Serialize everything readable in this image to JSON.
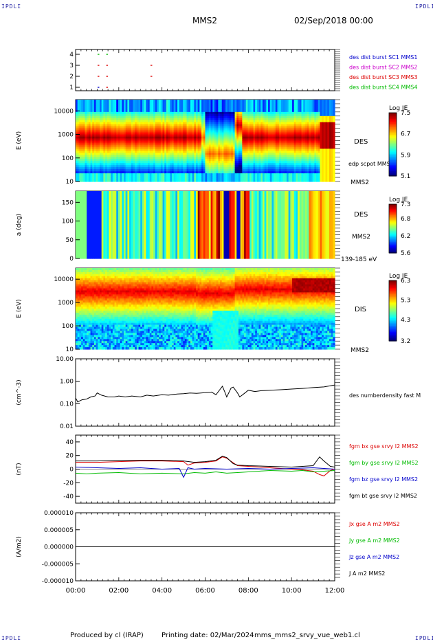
{
  "corner_labels": {
    "top_left": "IPDLI",
    "top_right": "IPDLI",
    "bottom_left": "IPDLI",
    "bottom_right": "IPDLI"
  },
  "header": {
    "spacecraft": "MMS2",
    "datetime": "02/Sep/2018 00:00"
  },
  "footer": {
    "producer": "Produced by cl (IRAP)",
    "printed": "Printing date: 02/Mar/2024",
    "file": "mms_mms2_srvy_vue_web1.cl"
  },
  "colors": {
    "blue": "#0000cc",
    "magenta": "#cc00cc",
    "red": "#dd0000",
    "green": "#00bb00",
    "black": "#000000"
  },
  "chart_data": [
    {
      "id": "burst",
      "type": "scatter",
      "y_ticks": [
        "1",
        "2",
        "3",
        "4"
      ],
      "legend": [
        {
          "label": "des dist burst SC1 MMS1",
          "color": "#0000cc"
        },
        {
          "label": "des dist burst SC2 MMS2",
          "color": "#cc00cc"
        },
        {
          "label": "des dist burst SC3 MMS3",
          "color": "#dd0000"
        },
        {
          "label": "des dist burst SC4 MMS4",
          "color": "#00bb00"
        }
      ],
      "marks": [
        {
          "x": 1.05,
          "y": 4,
          "color": "#00bb00"
        },
        {
          "x": 1.45,
          "y": 4,
          "color": "#00bb00"
        },
        {
          "x": 1.05,
          "y": 3,
          "color": "#dd0000"
        },
        {
          "x": 1.45,
          "y": 3,
          "color": "#dd0000"
        },
        {
          "x": 3.5,
          "y": 3,
          "color": "#dd0000"
        },
        {
          "x": 1.05,
          "y": 2,
          "color": "#dd0000"
        },
        {
          "x": 1.45,
          "y": 2,
          "color": "#dd0000"
        },
        {
          "x": 3.5,
          "y": 2,
          "color": "#dd0000"
        },
        {
          "x": 1.05,
          "y": 1,
          "color": "#0000cc"
        },
        {
          "x": 1.45,
          "y": 1,
          "color": "#dd0000"
        }
      ]
    },
    {
      "id": "des_energy",
      "type": "heatmap",
      "ylabel": "E (eV)",
      "y_ticks": [
        "10",
        "100",
        "1000",
        "10000"
      ],
      "yscale": "log",
      "ylim": [
        10,
        30000
      ],
      "label": "DES",
      "sublabel": "MMS2",
      "overlay_label": "edp scpot MMS2",
      "colorbar": {
        "title": "Log JE",
        "ticks": [
          "7.5",
          "6.7",
          "5.9",
          "5.1"
        ],
        "range": [
          5.1,
          7.5
        ]
      }
    },
    {
      "id": "des_pitch",
      "type": "heatmap",
      "ylabel": "a (deg)",
      "y_ticks": [
        "0",
        "50",
        "100",
        "150"
      ],
      "ylim": [
        0,
        180
      ],
      "label": "DES",
      "sublabel": "MMS2",
      "energy_range": "139-185 eV",
      "colorbar": {
        "title": "Log JE",
        "ticks": [
          "7.3",
          "6.8",
          "6.2",
          "5.6"
        ],
        "range": [
          5.6,
          7.3
        ]
      }
    },
    {
      "id": "dis_energy",
      "type": "heatmap",
      "ylabel": "E (eV)",
      "y_ticks": [
        "10",
        "100",
        "1000",
        "10000"
      ],
      "yscale": "log",
      "ylim": [
        10,
        30000
      ],
      "label": "DIS",
      "sublabel": "MMS2",
      "colorbar": {
        "title": "Log JE",
        "ticks": [
          "6.3",
          "5.3",
          "4.3",
          "3.2"
        ],
        "range": [
          3.2,
          6.3
        ]
      }
    },
    {
      "id": "density",
      "type": "line",
      "ylabel": "(cm^-3)",
      "yscale": "log",
      "ylim": [
        0.01,
        10
      ],
      "y_ticks": [
        "0.01",
        "0.10",
        "1.00",
        "10.00"
      ],
      "series": [
        {
          "name": "des numberdensity fast M",
          "color": "#000000"
        }
      ],
      "x": [
        0,
        0.1,
        0.3,
        0.5,
        0.7,
        0.9,
        1.0,
        1.2,
        1.5,
        1.8,
        2.0,
        2.3,
        2.6,
        3.0,
        3.3,
        3.6,
        4.0,
        4.3,
        4.7,
        5.0,
        5.3,
        5.6,
        6.0,
        6.3,
        6.5,
        6.7,
        6.8,
        6.9,
        7.0,
        7.2,
        7.3,
        7.5,
        7.6,
        7.8,
        8.0,
        8.3,
        8.6,
        9.0,
        9.5,
        10.0,
        10.5,
        11.0,
        11.5,
        12.0
      ],
      "values": [
        0.18,
        0.12,
        0.15,
        0.16,
        0.2,
        0.22,
        0.3,
        0.24,
        0.2,
        0.2,
        0.22,
        0.2,
        0.22,
        0.2,
        0.24,
        0.22,
        0.25,
        0.24,
        0.27,
        0.28,
        0.3,
        0.29,
        0.31,
        0.33,
        0.25,
        0.45,
        0.6,
        0.35,
        0.2,
        0.5,
        0.55,
        0.3,
        0.2,
        0.28,
        0.4,
        0.35,
        0.38,
        0.4,
        0.42,
        0.45,
        0.48,
        0.52,
        0.56,
        0.68
      ]
    },
    {
      "id": "fgm",
      "type": "line",
      "ylabel": "(nT)",
      "ylim": [
        -50,
        50
      ],
      "y_ticks": [
        "-40",
        "-20",
        "0",
        "20",
        "40"
      ],
      "series": [
        {
          "name": "fgm bx gse srvy l2 MMS2",
          "color": "#dd0000",
          "x": [
            0,
            1,
            2,
            3,
            4,
            5,
            5.2,
            5.5,
            6,
            6.5,
            6.8,
            7.0,
            7.5,
            8,
            8.5,
            9,
            9.5,
            10,
            10.5,
            11,
            11.3,
            11.5,
            11.8,
            12
          ],
          "values": [
            10,
            10,
            11,
            12,
            12,
            11,
            6,
            9,
            10,
            12,
            18,
            16,
            5,
            4,
            3,
            2,
            1,
            0,
            -1,
            -3,
            -8,
            -10,
            -2,
            0
          ]
        },
        {
          "name": "fgm by gse srvy l2 MMS2",
          "color": "#00bb00",
          "x": [
            0,
            0.5,
            1,
            2,
            3,
            4,
            5,
            5.5,
            6,
            6.5,
            7,
            7.5,
            8,
            8.5,
            9,
            10,
            10.5,
            11,
            11.5,
            12
          ],
          "values": [
            -6,
            -7,
            -6,
            -5,
            -7,
            -6,
            -7,
            -5,
            -6,
            -4,
            -6,
            -5,
            -4,
            -3,
            -2,
            -3,
            -2,
            -4,
            -3,
            -2
          ]
        },
        {
          "name": "fgm bz gse srvy l2 MMS2",
          "color": "#0000cc",
          "x": [
            0,
            1,
            2,
            3,
            4,
            4.8,
            5.0,
            5.2,
            5.5,
            6,
            7,
            8,
            9,
            10,
            11,
            12
          ],
          "values": [
            3,
            2,
            1,
            2,
            0,
            1,
            -12,
            2,
            0,
            1,
            0,
            1,
            0,
            1,
            2,
            0
          ]
        },
        {
          "name": "fgm bt gse srvy l2 MMS2",
          "color": "#000000",
          "x": [
            0,
            1,
            2,
            3,
            4,
            5,
            5.5,
            6,
            6.5,
            6.8,
            7.0,
            7.3,
            7.5,
            8,
            9,
            10,
            11,
            11.3,
            11.5,
            11.8,
            12
          ],
          "values": [
            12,
            12,
            13,
            13,
            13,
            12,
            10,
            11,
            13,
            19,
            17,
            8,
            6,
            5,
            4,
            3,
            5,
            18,
            12,
            4,
            3
          ]
        }
      ]
    },
    {
      "id": "current",
      "type": "line",
      "ylabel": "(A/m2)",
      "ylim": [
        -1e-05,
        1e-05
      ],
      "y_ticks": [
        "-0.000010",
        "-0.000005",
        "0.000000",
        "0.000005",
        "0.000010"
      ],
      "series": [
        {
          "name": "Jx gse A m2 MMS2",
          "color": "#dd0000"
        },
        {
          "name": "Jy gse A m2 MMS2",
          "color": "#00bb00"
        },
        {
          "name": "Jz gse A m2 MMS2",
          "color": "#0000cc"
        },
        {
          "name": "J A m2 MMS2",
          "color": "#000000"
        }
      ],
      "x": [
        0,
        12
      ],
      "values": [
        0,
        0
      ]
    }
  ],
  "time_axis": {
    "ticks": [
      "00:00",
      "02:00",
      "04:00",
      "06:00",
      "08:00",
      "10:00",
      "12:00"
    ],
    "range_hours": [
      0,
      12
    ]
  }
}
